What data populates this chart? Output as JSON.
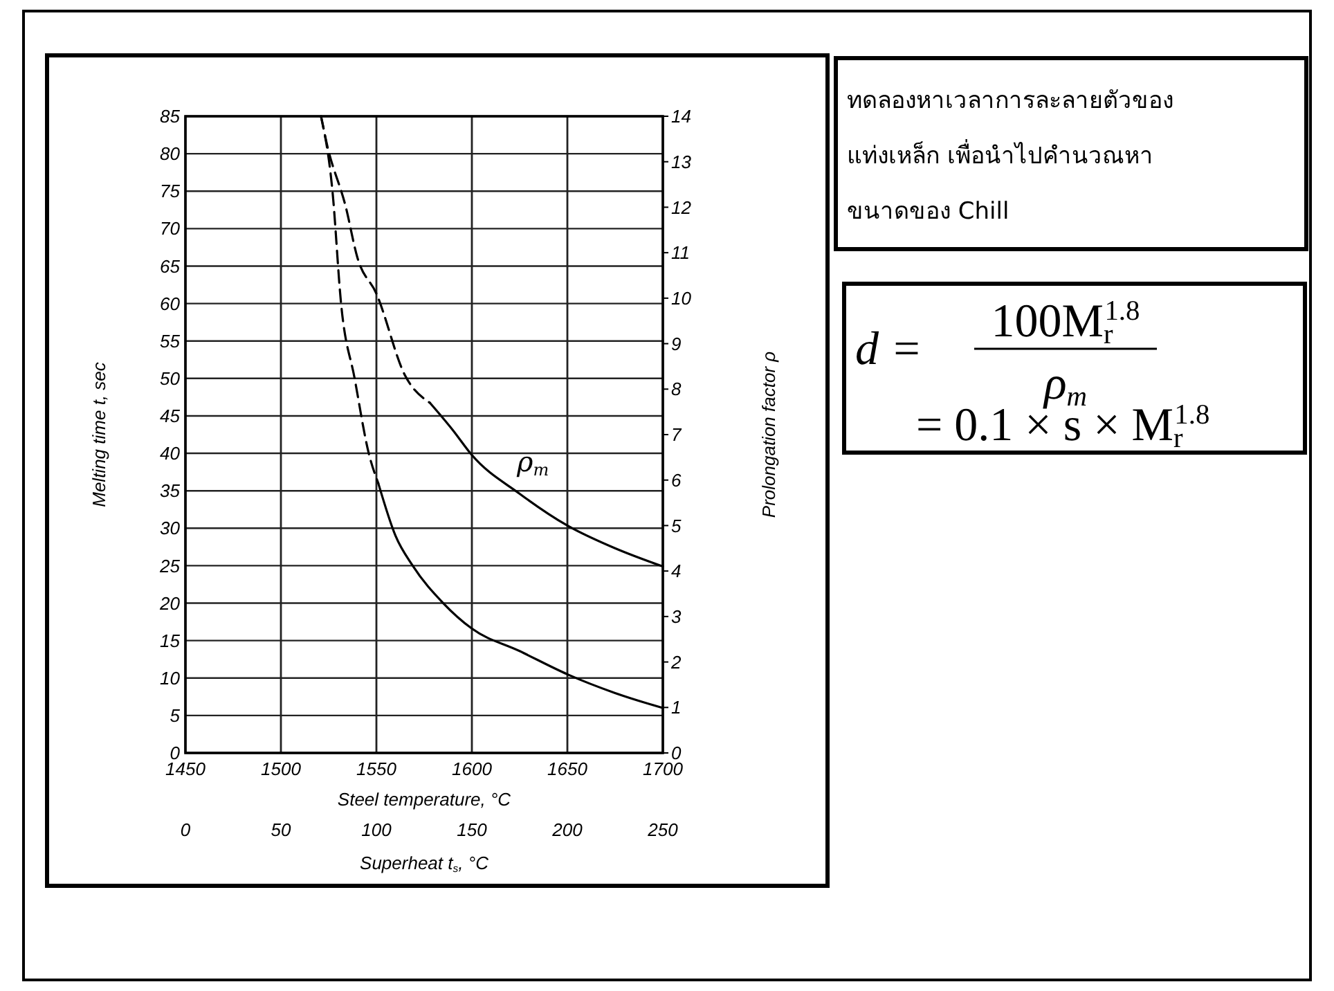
{
  "chart_data": {
    "type": "line",
    "xlabel": "Steel temperature, °C",
    "x2label": "Superheat t$_{s}$, °C",
    "ylabel": "Melting time t, sec",
    "y2label": "Prolongation factor ρ",
    "xlim": [
      1450,
      1700
    ],
    "xticks": [
      1450,
      1500,
      1550,
      1600,
      1650,
      1700
    ],
    "x2lim": [
      0,
      250
    ],
    "x2ticks": [
      0,
      50,
      100,
      150,
      200,
      250
    ],
    "ylim": [
      0,
      85
    ],
    "yticks": [
      0,
      5,
      10,
      15,
      20,
      25,
      30,
      35,
      40,
      45,
      50,
      55,
      60,
      65,
      70,
      75,
      80,
      85
    ],
    "y2lim": [
      0,
      14
    ],
    "y2ticks": [
      0,
      1,
      2,
      3,
      4,
      5,
      6,
      7,
      8,
      9,
      10,
      11,
      12,
      13,
      14
    ],
    "grid": true,
    "series": [
      {
        "color": "#000000",
        "line_style": "dashed",
        "x": [
          1521,
          1527,
          1531.5,
          1538.6,
          1546,
          1551
        ],
        "values": [
          85,
          75,
          60,
          50,
          40,
          36
        ]
      },
      {
        "color": "#000000",
        "line_style": "solid",
        "x": [
          1551,
          1560,
          1569,
          1585,
          1600,
          1625,
          1650,
          1675,
          1700
        ],
        "values": [
          36,
          29,
          25,
          20,
          16.6,
          13.6,
          10.5,
          8,
          6
        ]
      },
      {
        "color": "#000000",
        "line_style": "dashed",
        "axis": "y2",
        "x": [
          1521,
          1524,
          1534,
          1540,
          1550,
          1565,
          1578
        ],
        "values": [
          14,
          13.4,
          12,
          10.9,
          10.1,
          8.3,
          7.7
        ]
      },
      {
        "name": "ρ$_{m}$",
        "color": "#000000",
        "line_style": "solid",
        "axis": "y2",
        "x": [
          1578,
          1590,
          1600,
          1625,
          1650,
          1675,
          1700
        ],
        "values": [
          7.7,
          7.1,
          6.55,
          5.7,
          5,
          4.5,
          4.1
        ]
      }
    ],
    "annotations": [
      "ทดลองหาเวลาการละลายตัวของ\nแท่งเหล็ก เพื่อนำไปคำนวณหา\nขนาดของ Chill",
      "d =",
      "100M$_{r}$$^{1.8}$",
      "ρ$_{m}$",
      "= 0.1 × s × M$_{r}$$^{1.8}$"
    ]
  }
}
